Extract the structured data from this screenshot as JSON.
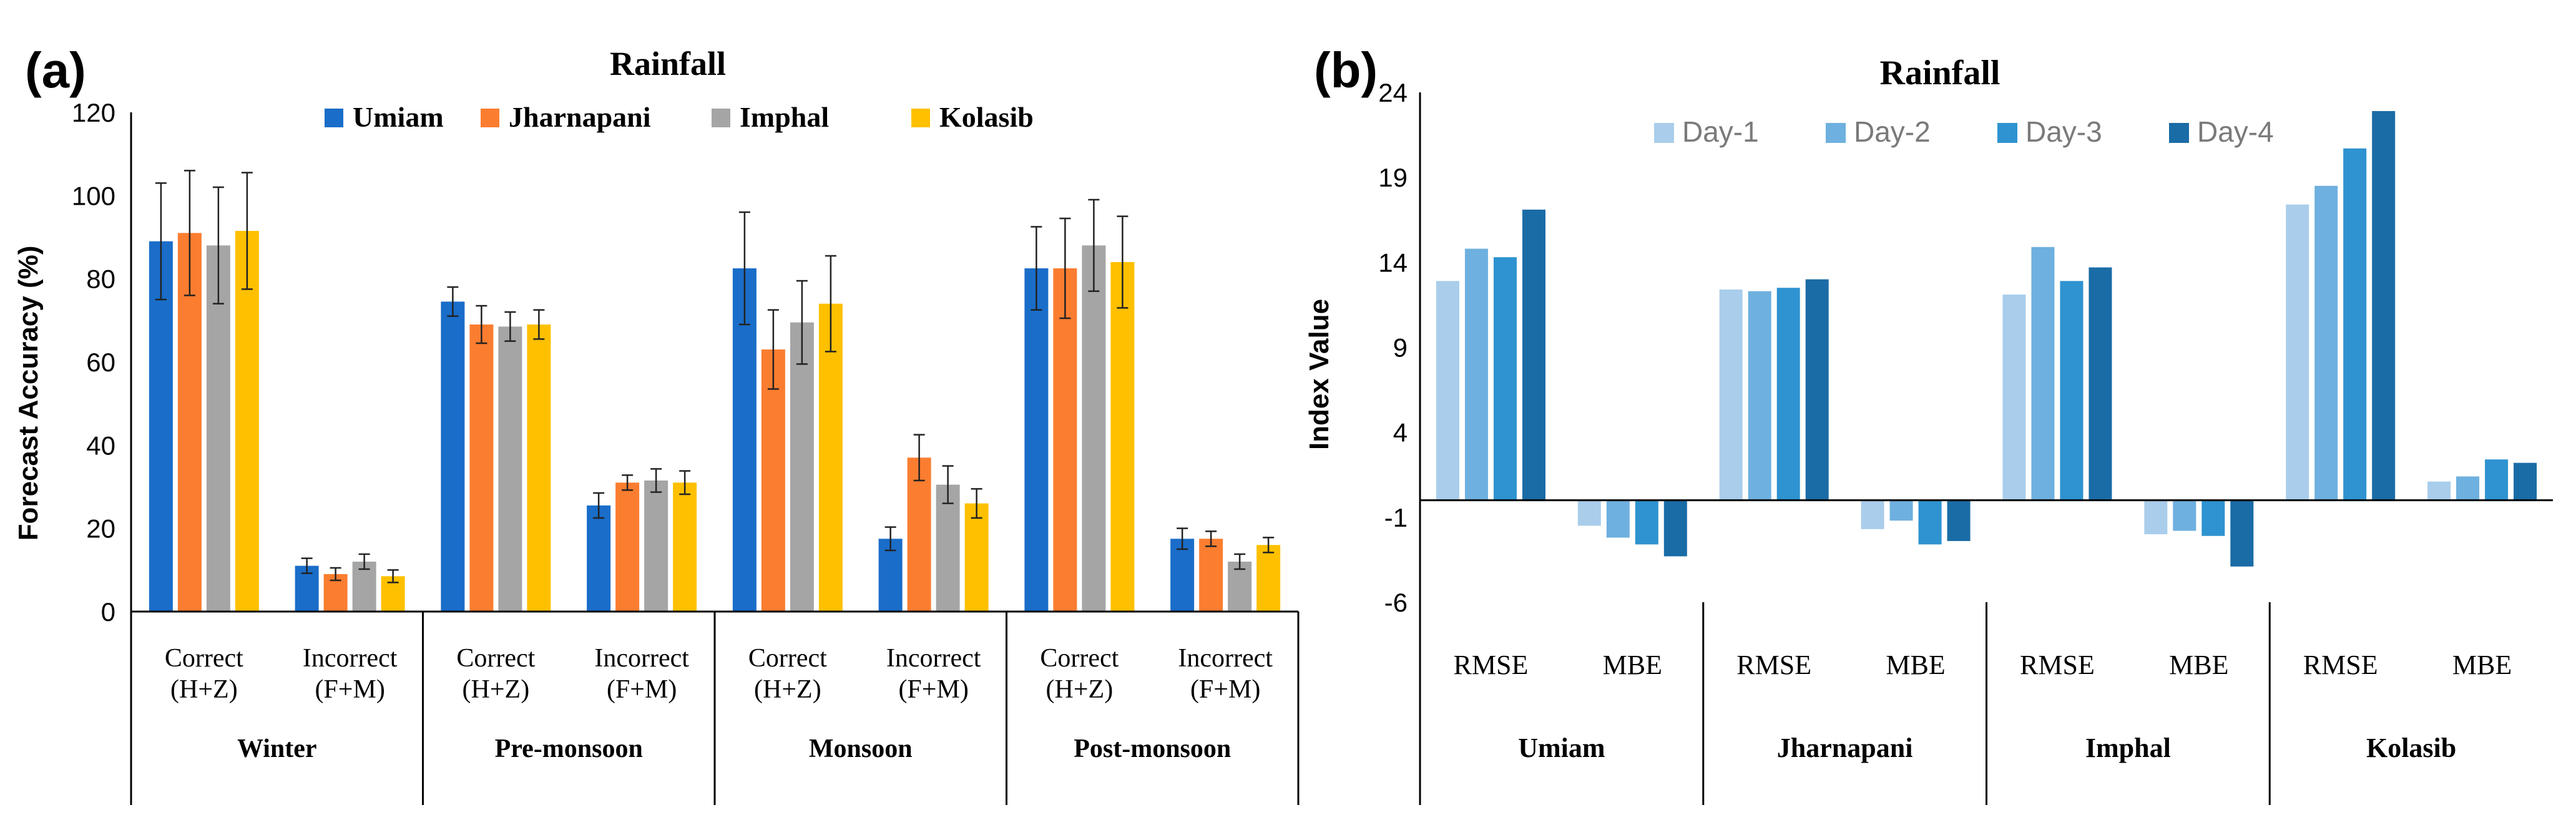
{
  "chart_data": [
    {
      "panel_label": "(a)",
      "type": "bar",
      "title": "Rainfall",
      "ylabel": "Forecast  Accuracy (%)",
      "ylim": [
        0,
        120
      ],
      "yticks": [
        "0",
        "20",
        "40",
        "60",
        "80",
        "100",
        "120"
      ],
      "legend": [
        "Umiam",
        "Jharnapani",
        "Imphal",
        "Kolasib"
      ],
      "colors": [
        "#1a6dc9",
        "#fb7d30",
        "#a5a5a5",
        "#ffc000"
      ],
      "groups": [
        {
          "season": "Winter",
          "categories": [
            {
              "line1": "Correct",
              "line2": "(H+Z)"
            },
            {
              "line1": "Incorrect",
              "line2": "(F+M)"
            }
          ]
        },
        {
          "season": "Pre-monsoon",
          "categories": [
            {
              "line1": "Correct",
              "line2": "(H+Z)"
            },
            {
              "line1": "Incorrect",
              "line2": "(F+M)"
            }
          ]
        },
        {
          "season": "Monsoon",
          "categories": [
            {
              "line1": "Correct",
              "line2": "(H+Z)"
            },
            {
              "line1": "Incorrect",
              "line2": "(F+M)"
            }
          ]
        },
        {
          "season": "Post-monsoon",
          "categories": [
            {
              "line1": "Correct",
              "line2": "(H+Z)"
            },
            {
              "line1": "Incorrect",
              "line2": "(F+M)"
            }
          ]
        }
      ],
      "series": [
        {
          "name": "Umiam",
          "values": [
            89,
            11,
            74.5,
            25.5,
            82.5,
            17.5,
            82.5,
            17.5
          ],
          "errors": [
            14,
            1.8,
            3.5,
            3,
            13.5,
            2.8,
            10,
            2.5
          ]
        },
        {
          "name": "Jharnapani",
          "values": [
            91,
            9,
            69,
            31,
            63,
            37,
            82.5,
            17.5
          ],
          "errors": [
            15,
            1.5,
            4.5,
            1.8,
            9.5,
            5.5,
            12,
            1.8
          ]
        },
        {
          "name": "Imphal",
          "values": [
            88,
            12,
            68.5,
            31.5,
            69.5,
            30.5,
            88,
            12
          ],
          "errors": [
            14,
            1.8,
            3.5,
            2.8,
            10,
            4.5,
            11,
            1.8
          ]
        },
        {
          "name": "Kolasib",
          "values": [
            91.5,
            8.5,
            69,
            31,
            74,
            26,
            84,
            16
          ],
          "errors": [
            14,
            1.5,
            3.5,
            2.8,
            11.5,
            3.5,
            11,
            1.8
          ]
        }
      ]
    },
    {
      "panel_label": "(b)",
      "type": "bar",
      "title": "Rainfall",
      "ylabel": "Index Value",
      "ylim": [
        -6,
        24
      ],
      "yticks": [
        "-6",
        "-1",
        "4",
        "9",
        "14",
        "19",
        "24"
      ],
      "legend": [
        "Day-1",
        "Day-2",
        "Day-3",
        "Day-4"
      ],
      "colors": [
        "#a9cdeb",
        "#6eb0df",
        "#2e93d0",
        "#1a6ca6"
      ],
      "groups": [
        {
          "site": "Umiam",
          "categories": [
            "RMSE",
            "MBE"
          ]
        },
        {
          "site": "Jharnapani",
          "categories": [
            "RMSE",
            "MBE"
          ]
        },
        {
          "site": "Imphal",
          "categories": [
            "RMSE",
            "MBE"
          ]
        },
        {
          "site": "Kolasib",
          "categories": [
            "RMSE",
            "MBE"
          ]
        }
      ],
      "series": [
        {
          "name": "Day-1",
          "values": [
            12.9,
            -1.5,
            12.4,
            -1.7,
            12.1,
            -2.0,
            17.4,
            1.1
          ]
        },
        {
          "name": "Day-2",
          "values": [
            14.8,
            -2.2,
            12.3,
            -1.2,
            14.9,
            -1.8,
            18.5,
            1.4
          ]
        },
        {
          "name": "Day-3",
          "values": [
            14.3,
            -2.6,
            12.5,
            -2.6,
            12.9,
            -2.1,
            20.7,
            2.4
          ]
        },
        {
          "name": "Day-4",
          "values": [
            17.1,
            -3.3,
            13.0,
            -2.4,
            13.7,
            -3.9,
            22.9,
            2.2
          ]
        }
      ]
    }
  ]
}
